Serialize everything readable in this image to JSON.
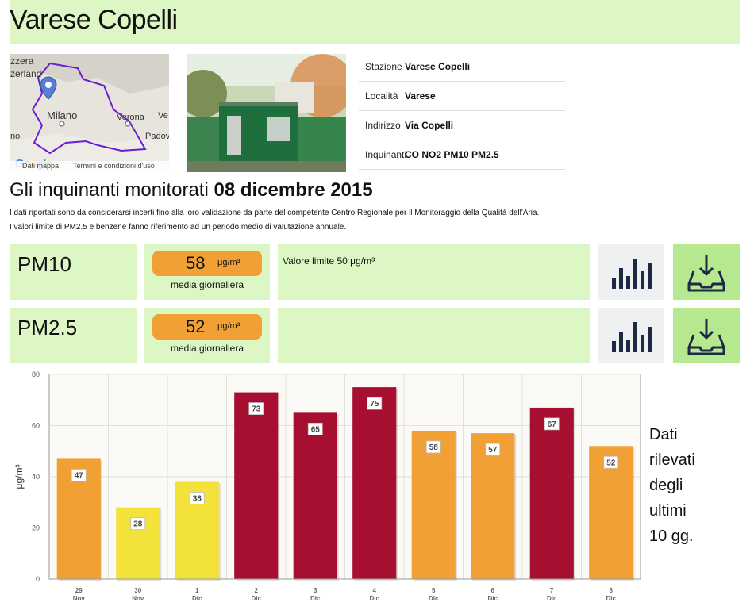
{
  "station": {
    "title": "Varese Copelli"
  },
  "map": {
    "labels": [
      "zzera",
      "zerland",
      "Milano",
      "Verona",
      "Ve",
      "no",
      "Padov"
    ],
    "footer_left": "Dati mappa",
    "footer_right": "Termini e condizioni d'uso",
    "logo": "Google",
    "pin_color": "#5a7bd6",
    "border_color": "#6a1ecf"
  },
  "info": {
    "rows": [
      {
        "key": "Stazione",
        "value": "Varese Copelli"
      },
      {
        "key": "Località",
        "value": "Varese"
      },
      {
        "key": "Indirizzo",
        "value": "Via Copelli"
      },
      {
        "key": "Inquinanti",
        "value": "CO NO2 PM10 PM2.5"
      }
    ]
  },
  "heading": {
    "prefix": "Gli inquinanti monitorati",
    "date": "08 dicembre 2015"
  },
  "notes": [
    "I dati riportati sono da considerarsi incerti fino alla loro validazione da parte del competente Centro Regionale per il Monitoraggio della Qualità dell'Aria.",
    "I valori limite di PM2.5 e benzene fanno riferimento ad un periodo medio di valutazione annuale."
  ],
  "pollutants": [
    {
      "name": "PM10",
      "value": "58",
      "unit": "μg/m³",
      "sub": "media giornaliera",
      "limit": "Valore limite 50 μg/m³",
      "chart_icon": "bar-chart-icon",
      "download_icon": "download-tray-icon"
    },
    {
      "name": "PM2.5",
      "value": "52",
      "unit": "μg/m³",
      "sub": "media giornaliera",
      "limit": "",
      "chart_icon": "bar-chart-icon",
      "download_icon": "download-tray-icon"
    }
  ],
  "chart_data": {
    "type": "bar",
    "categories": [
      "29 Nov",
      "30 Nov",
      "1 Dic",
      "2 Dic",
      "3 Dic",
      "4 Dic",
      "5 Dic",
      "6 Dic",
      "7 Dic",
      "8 Dic"
    ],
    "category_lines": [
      [
        "29",
        "Nov"
      ],
      [
        "30",
        "Nov"
      ],
      [
        "1",
        "Dic"
      ],
      [
        "2",
        "Dic"
      ],
      [
        "3",
        "Dic"
      ],
      [
        "4",
        "Dic"
      ],
      [
        "5",
        "Dic"
      ],
      [
        "6",
        "Dic"
      ],
      [
        "7",
        "Dic"
      ],
      [
        "8",
        "Dic"
      ]
    ],
    "values": [
      47,
      28,
      38,
      73,
      65,
      75,
      58,
      57,
      67,
      52
    ],
    "colors": [
      "#f0a034",
      "#f2e23a",
      "#f2e23a",
      "#a60f2f",
      "#a60f2f",
      "#a60f2f",
      "#f0a034",
      "#f0a034",
      "#a60f2f",
      "#f0a034"
    ],
    "ylabel": "μg/m³",
    "ylim": [
      0,
      80
    ],
    "yticks": [
      0,
      20,
      40,
      60,
      80
    ],
    "grid": true
  },
  "side_note": [
    "Dati",
    "rilevati",
    "degli",
    "ultimi",
    "10 gg."
  ]
}
